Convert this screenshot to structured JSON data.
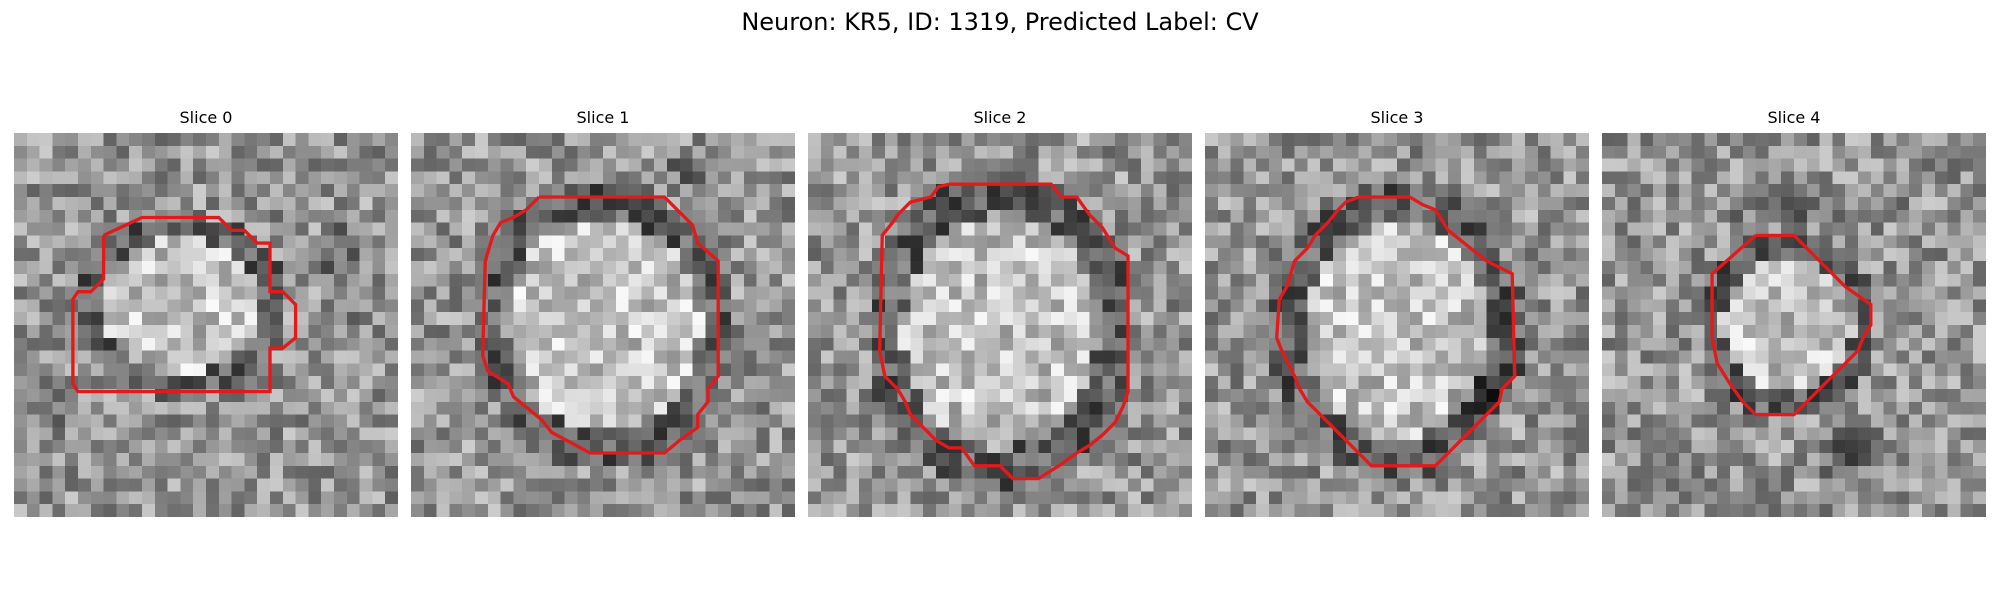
{
  "figure": {
    "title": "Neuron: KR5, ID: 1319, Predicted Label: CV"
  },
  "colors": {
    "contour": "#e31a1c",
    "background": "#ffffff"
  },
  "panels": [
    {
      "title": "Slice 0",
      "image": "grayscale microscopy patch of neuron cross-section",
      "contour": "red segmentation outline"
    },
    {
      "title": "Slice 1",
      "image": "grayscale microscopy patch of neuron cross-section",
      "contour": "red segmentation outline"
    },
    {
      "title": "Slice 2",
      "image": "grayscale microscopy patch of neuron cross-section",
      "contour": "red segmentation outline"
    },
    {
      "title": "Slice 3",
      "image": "grayscale microscopy patch of neuron cross-section",
      "contour": "red segmentation outline"
    },
    {
      "title": "Slice 4",
      "image": "grayscale microscopy patch of neuron cross-section",
      "contour": "red segmentation outline"
    }
  ]
}
